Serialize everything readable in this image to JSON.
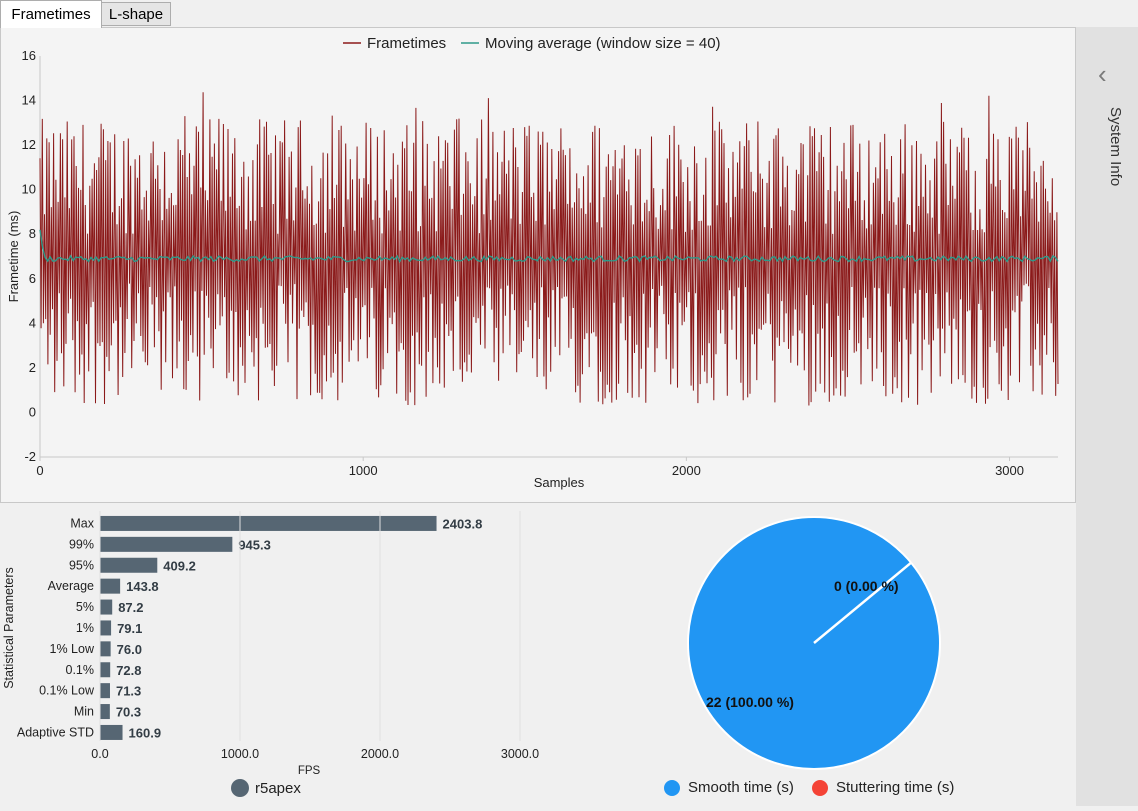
{
  "tabs": [
    {
      "label": "Frametimes",
      "active": true
    },
    {
      "label": "L-shape",
      "active": false
    }
  ],
  "sidebar": {
    "label": "System Info",
    "collapse_icon": "chevron-left-icon"
  },
  "chart_data": [
    {
      "type": "line",
      "xlabel": "Samples",
      "ylabel": "Frametime (ms)",
      "xlim": [
        0,
        3150
      ],
      "ylim": [
        -2,
        16
      ],
      "x_ticks": [
        "0",
        "1000",
        "2000",
        "3000"
      ],
      "y_ticks": [
        "-2",
        "0",
        "2",
        "4",
        "6",
        "8",
        "10",
        "12",
        "14",
        "16"
      ],
      "grid": false,
      "legend_position": "top",
      "series": [
        {
          "name": "Frametimes",
          "color": "#8b1a1a",
          "sample_count": 3150,
          "min": 0.2,
          "max": 14.5,
          "pattern": "alternating high/low"
        },
        {
          "name": "Moving average (window size = 40)",
          "color": "#2e9a8a",
          "level": 6.9
        }
      ]
    },
    {
      "type": "bar",
      "orientation": "horizontal",
      "xlabel": "FPS",
      "ylabel": "Statistical Parameters",
      "xlim": [
        0,
        3000
      ],
      "x_ticks": [
        "0.0",
        "1000.0",
        "2000.0",
        "3000.0"
      ],
      "categories": [
        "Max",
        "99%",
        "95%",
        "Average",
        "5%",
        "1%",
        "1% Low",
        "0.1%",
        "0.1% Low",
        "Min",
        "Adaptive STD"
      ],
      "values": [
        2403.8,
        945.3,
        409.2,
        143.8,
        87.2,
        79.1,
        76.0,
        72.8,
        71.3,
        70.3,
        160.9
      ],
      "value_labels": [
        "2403.8",
        "945.3",
        "409.2",
        "143.8",
        "87.2",
        "79.1",
        "76.0",
        "72.8",
        "71.3",
        "70.3",
        "160.9"
      ],
      "bar_color": "#566673",
      "legend": {
        "name": "r5apex",
        "color": "#566673"
      }
    },
    {
      "type": "pie",
      "slices": [
        {
          "name": "Smooth time (s)",
          "value": 22,
          "label": "22 (100.00 %)",
          "color": "#2196f3"
        },
        {
          "name": "Stuttering time (s)",
          "value": 0,
          "label": "0 (0.00 %)",
          "color": "#f44336"
        }
      ],
      "legend_position": "bottom"
    }
  ]
}
